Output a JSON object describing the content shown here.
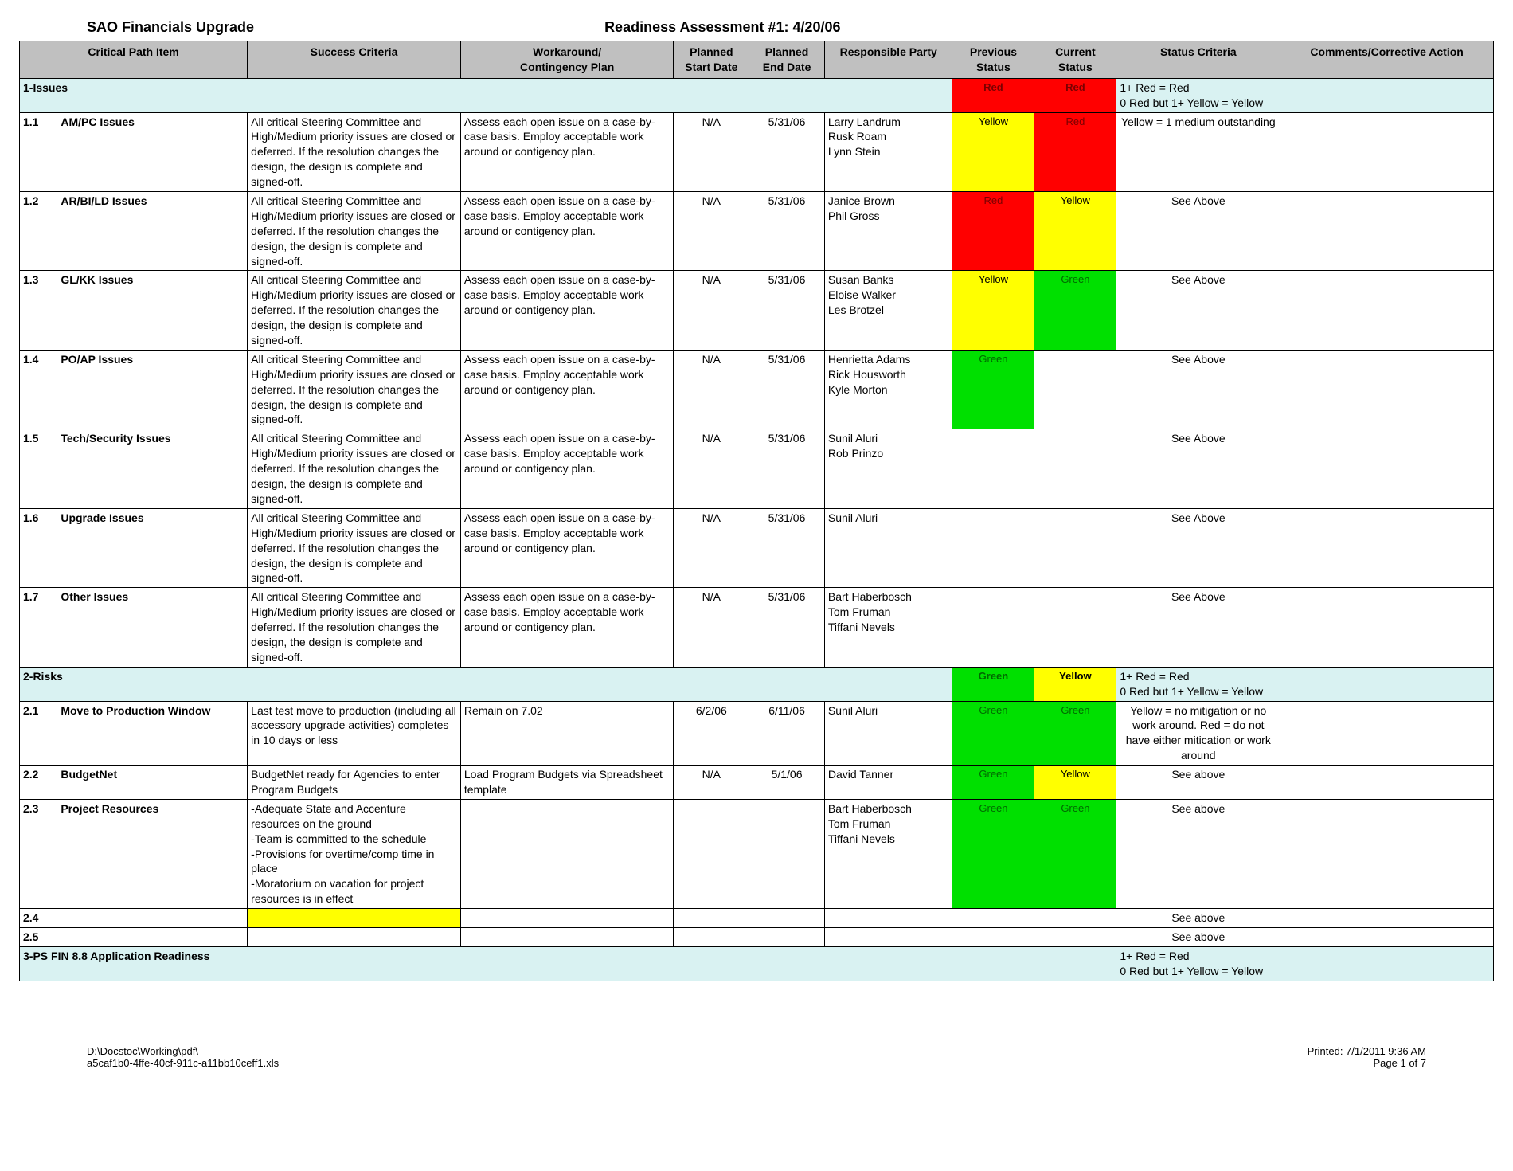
{
  "colors": {
    "header_bg": "#c0c0c0",
    "section_bg": "#d9f2f2",
    "red": "#ff0000",
    "yellow": "#ffff00",
    "green": "#00e000",
    "border": "#000000",
    "white": "#ffffff"
  },
  "header": {
    "left": "SAO Financials Upgrade",
    "right": "Readiness Assessment #1:   4/20/06"
  },
  "columns": [
    "",
    "Critical Path Item",
    "Success Criteria",
    "Workaround/\nContingency Plan",
    "Planned\nStart Date",
    "Planned\nEnd Date",
    "Responsible Party",
    "Previous\nStatus",
    "Current\nStatus",
    "Status Criteria",
    "Comments/Corrective Action"
  ],
  "status_labels": {
    "red": "Red",
    "yellow": "Yellow",
    "green": "Green"
  },
  "sections": [
    {
      "label": "1-Issues",
      "prev": "red",
      "curr": "red",
      "criteria": "1+ Red = Red\n0 Red but 1+ Yellow = Yellow",
      "rows": [
        {
          "num": "1.1",
          "item": "AM/PC Issues",
          "success": "All critical Steering Committee and High/Medium priority issues are closed or deferred.  If the resolution changes the design, the design is complete and signed-off.",
          "work": "Assess each open issue on a case-by-case basis.  Employ acceptable work around or contigency plan.",
          "start": "N/A",
          "end": "5/31/06",
          "resp": "Larry Landrum\nRusk Roam\nLynn Stein",
          "prev": "yellow",
          "curr": "red",
          "criteria": "Yellow = 1 medium outstanding",
          "criteria_align": "center"
        },
        {
          "num": "1.2",
          "item": "AR/BI/LD Issues",
          "success": "All critical Steering Committee and High/Medium priority issues are closed or deferred.  If the resolution changes the design, the design is complete and signed-off.",
          "work": "Assess each open issue on a case-by-case basis.  Employ acceptable work around or contigency plan.",
          "start": "N/A",
          "end": "5/31/06",
          "resp": "Janice Brown\nPhil Gross",
          "prev": "red",
          "curr": "yellow",
          "criteria": "See Above",
          "criteria_align": "center"
        },
        {
          "num": "1.3",
          "item": "GL/KK Issues",
          "success": "All critical Steering Committee and High/Medium priority issues are closed or deferred.  If the resolution changes the design, the design is complete and signed-off.",
          "work": "Assess each open issue on a case-by-case basis.  Employ acceptable work around or contigency plan.",
          "start": "N/A",
          "end": "5/31/06",
          "resp": "Susan Banks\nEloise Walker\nLes Brotzel",
          "prev": "yellow",
          "curr": "green",
          "criteria": "See Above",
          "criteria_align": "center"
        },
        {
          "num": "1.4",
          "item": "PO/AP Issues",
          "success": "All critical Steering Committee and High/Medium priority issues are closed or deferred.  If the resolution changes the design, the design is complete and signed-off.",
          "work": "Assess each open issue on a case-by-case basis.  Employ acceptable work around or contigency plan.",
          "start": "N/A",
          "end": "5/31/06",
          "resp": "Henrietta Adams\nRick Housworth\nKyle Morton",
          "prev": "green",
          "curr": "",
          "criteria": "See Above",
          "criteria_align": "center"
        },
        {
          "num": "1.5",
          "item": "Tech/Security Issues",
          "success": "All critical Steering Committee and High/Medium priority issues are closed or deferred.  If the resolution changes the design, the design is complete and signed-off.",
          "work": "Assess each open issue on a case-by-case basis.  Employ acceptable work around or contigency plan.",
          "start": "N/A",
          "end": "5/31/06",
          "resp": "Sunil Aluri\nRob Prinzo",
          "prev": "",
          "curr": "",
          "criteria": "See Above",
          "criteria_align": "center"
        },
        {
          "num": "1.6",
          "item": "Upgrade Issues",
          "success": "All critical Steering Committee and High/Medium priority issues are closed or deferred.  If the resolution changes the design, the design is complete and signed-off.",
          "work": "Assess each open issue on a case-by-case basis.  Employ acceptable work around or contigency plan.",
          "start": "N/A",
          "end": "5/31/06",
          "resp": "Sunil Aluri",
          "prev": "",
          "curr": "",
          "criteria": "See Above",
          "criteria_align": "center"
        },
        {
          "num": "1.7",
          "item": "Other Issues",
          "success": "All critical Steering Committee and High/Medium priority issues are closed or deferred.  If the resolution changes the design, the design is complete and signed-off.",
          "work": "Assess each open issue on a case-by-case basis.  Employ acceptable work around or contigency plan.",
          "start": "N/A",
          "end": "5/31/06",
          "resp": "Bart Haberbosch\nTom Fruman\nTiffani Nevels",
          "prev": "",
          "curr": "",
          "criteria": "See Above",
          "criteria_align": "center"
        }
      ]
    },
    {
      "label": "2-Risks",
      "prev": "green",
      "curr": "yellow",
      "criteria": "1+ Red = Red\n0 Red but 1+ Yellow = Yellow",
      "rows": [
        {
          "num": "2.1",
          "item": "Move to Production Window",
          "success": "Last test move to production (including all accessory upgrade activities) completes in 10 days or less",
          "work": "Remain on 7.02",
          "start": "6/2/06",
          "end": "6/11/06",
          "resp": "Sunil Aluri",
          "prev": "green",
          "curr": "green",
          "criteria": "Yellow = no mitigation or no work around.  Red = do not have either mitication or work around",
          "criteria_align": "center"
        },
        {
          "num": "2.2",
          "item": "BudgetNet",
          "success": "BudgetNet ready for Agencies to enter Program Budgets",
          "work": "Load Program Budgets via Spreadsheet template",
          "start": "N/A",
          "end": "5/1/06",
          "resp": "David Tanner",
          "prev": "green",
          "curr": "yellow",
          "criteria": "See above",
          "criteria_align": "center"
        },
        {
          "num": "2.3",
          "item": "Project Resources",
          "success": "-Adequate State and Accenture resources on the ground\n-Team is committed to the schedule\n-Provisions for overtime/comp time in place\n-Moratorium on vacation for project resources is in effect",
          "work": "",
          "start": "",
          "end": "",
          "resp": "Bart Haberbosch\nTom Fruman\nTiffani Nevels",
          "prev": "green",
          "curr": "green",
          "criteria": "See above",
          "criteria_align": "center"
        },
        {
          "num": "2.4",
          "item": "",
          "success": "",
          "success_bg": "yellow",
          "work": "",
          "start": "",
          "end": "",
          "resp": "",
          "prev": "",
          "curr": "",
          "criteria": "See above",
          "criteria_align": "center"
        },
        {
          "num": "2.5",
          "item": "",
          "success": "",
          "work": "",
          "start": "",
          "end": "",
          "resp": "",
          "prev": "",
          "curr": "",
          "criteria": "See above",
          "criteria_align": "center"
        }
      ]
    },
    {
      "label": "3-PS FIN 8.8 Application Readiness",
      "prev": "",
      "curr": "",
      "criteria": "1+ Red = Red\n0 Red but 1+ Yellow = Yellow",
      "rows": []
    }
  ],
  "footer": {
    "path1": "D:\\Docstoc\\Working\\pdf\\",
    "path2": "a5caf1b0-4ffe-40cf-911c-a11bb10ceff1.xls",
    "printed": "Printed:  7/1/2011 9:36 AM",
    "page": "Page 1 of 7"
  }
}
